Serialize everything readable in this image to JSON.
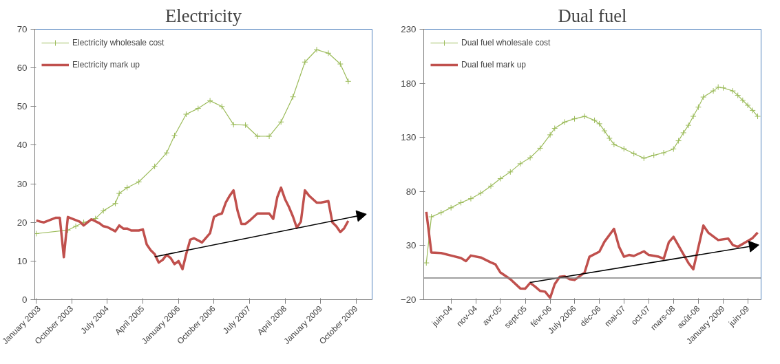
{
  "chart_data": [
    {
      "type": "line",
      "title": "Electricity",
      "xlim": [
        "2002-12-20",
        "2010-02-01"
      ],
      "ylim": [
        0,
        70
      ],
      "yticks": [
        0,
        10,
        20,
        30,
        40,
        50,
        60,
        70
      ],
      "xticks": [
        {
          "value": "2003-01",
          "label": "January 2003"
        },
        {
          "value": "2003-10",
          "label": "October 2003"
        },
        {
          "value": "2004-07",
          "label": "July 2004"
        },
        {
          "value": "2005-04",
          "label": "April 2005"
        },
        {
          "value": "2006-01",
          "label": "January 2006"
        },
        {
          "value": "2006-10",
          "label": "October 2006"
        },
        {
          "value": "2007-07",
          "label": "July 2007"
        },
        {
          "value": "2008-04",
          "label": "April 2008"
        },
        {
          "value": "2009-01",
          "label": "January 2009"
        },
        {
          "value": "2009-10",
          "label": "October 2009"
        }
      ],
      "legend": "top left",
      "grid": false,
      "series": [
        {
          "name": "Electricity wholesale cost",
          "color": "#9bbb59",
          "marker": "cross",
          "x": [
            "2003-01",
            "2003-09",
            "2003-11",
            "2004-01",
            "2004-04",
            "2004-06",
            "2004-09",
            "2004-10",
            "2004-12",
            "2005-03",
            "2005-07",
            "2005-10",
            "2005-12",
            "2006-03",
            "2006-06",
            "2006-09",
            "2006-12",
            "2007-03",
            "2007-06",
            "2007-09",
            "2007-12",
            "2008-03",
            "2008-06",
            "2008-09",
            "2008-12",
            "2009-03",
            "2009-06",
            "2009-08"
          ],
          "values": [
            17.1,
            18,
            19,
            20,
            21,
            23,
            24.9,
            27.5,
            29,
            30.5,
            34.5,
            38,
            42.5,
            48,
            49.5,
            51.5,
            50,
            45.3,
            45.2,
            42.3,
            42.3,
            46,
            52.5,
            61.5,
            64.7,
            63.8,
            61,
            56.5
          ]
        },
        {
          "name": "Electricity mark up",
          "color": "#c0504d",
          "x": [
            "2003-01",
            "2003-02",
            "2003-03",
            "2003-05",
            "2003-06",
            "2003-07",
            "2003-08",
            "2003-09",
            "2003-10",
            "2003-12",
            "2004-01",
            "2004-03",
            "2004-05",
            "2004-06",
            "2004-07",
            "2004-09",
            "2004-10",
            "2004-11",
            "2004-12",
            "2005-01",
            "2005-03",
            "2005-04",
            "2005-05",
            "2005-06",
            "2005-07",
            "2005-08",
            "2005-09",
            "2005-10",
            "2005-11",
            "2005-12",
            "2006-01",
            "2006-02",
            "2006-03",
            "2006-04",
            "2006-05",
            "2006-07",
            "2006-08",
            "2006-09",
            "2006-10",
            "2006-11",
            "2006-12",
            "2007-01",
            "2007-02",
            "2007-03",
            "2007-04",
            "2007-05",
            "2007-06",
            "2007-07",
            "2007-09",
            "2007-12",
            "2008-01",
            "2008-02",
            "2008-03",
            "2008-04",
            "2008-05",
            "2008-06",
            "2008-07",
            "2008-08",
            "2008-09",
            "2008-10",
            "2008-12",
            "2009-01",
            "2009-03",
            "2009-04",
            "2009-05",
            "2009-06",
            "2009-07",
            "2009-08"
          ],
          "values": [
            20.5,
            20.2,
            20.0,
            20.8,
            21.2,
            21.2,
            11,
            21.4,
            21,
            20.2,
            19.2,
            20.8,
            19.8,
            19.0,
            18.8,
            17.7,
            19.2,
            18.4,
            18.4,
            17.9,
            17.9,
            18.2,
            14.3,
            12.8,
            11.8,
            9.6,
            10.3,
            11.6,
            10.8,
            9.2,
            10,
            7.9,
            11.8,
            15.5,
            15.9,
            14.8,
            16,
            17.2,
            21.4,
            22,
            22.3,
            25.2,
            27,
            28.3,
            23,
            19.6,
            19.6,
            20.4,
            22.3,
            22.3,
            20.9,
            26.5,
            29,
            26,
            24,
            21.5,
            18.6,
            20.2,
            28.3,
            27,
            25.1,
            25.1,
            25.5,
            20,
            19,
            17.5,
            18.5,
            20.4
          ]
        },
        {
          "type": "line",
          "color": "#000000",
          "x": [
            "2005-07",
            "2009-11"
          ],
          "values": [
            11.1,
            21.8
          ]
        }
      ]
    },
    {
      "type": "line",
      "title": "Dual fuel",
      "xlim": [
        "2003-12-16",
        "2009-08-22"
      ],
      "ylim": [
        -20,
        230
      ],
      "yticks": [
        -20,
        30,
        80,
        130,
        180,
        230
      ],
      "xticks": [
        {
          "value": "2004-06",
          "label": "juin-04"
        },
        {
          "value": "2004-11",
          "label": "nov-04"
        },
        {
          "value": "2005-04",
          "label": "avr-05"
        },
        {
          "value": "2005-09",
          "label": "sept-05"
        },
        {
          "value": "2006-02",
          "label": "févr-06"
        },
        {
          "value": "2006-07",
          "label": "July 2006"
        },
        {
          "value": "2006-12",
          "label": "déc-06"
        },
        {
          "value": "2007-05",
          "label": "mai-07"
        },
        {
          "value": "2007-10",
          "label": "oct-07"
        },
        {
          "value": "2008-03",
          "label": "mars-08"
        },
        {
          "value": "2008-08",
          "label": "août-08"
        },
        {
          "value": "2009-01",
          "label": "January 2009"
        },
        {
          "value": "2009-06",
          "label": "juin-09"
        }
      ],
      "legend": "top left",
      "grid": false,
      "ref_lines": [
        {
          "axis": "y",
          "value": 0,
          "color": "#808080"
        }
      ],
      "series": [
        {
          "name": "Dual fuel wholesale cost",
          "color": "#9bbb59",
          "marker": "cross",
          "x": [
            "2004-01",
            "2004-02",
            "2004-04",
            "2004-06",
            "2004-08",
            "2004-10",
            "2004-12",
            "2005-02",
            "2005-04",
            "2005-06",
            "2005-08",
            "2005-10",
            "2005-12",
            "2006-02",
            "2006-03",
            "2006-05",
            "2006-07",
            "2006-09",
            "2006-11",
            "2006-12",
            "2007-01",
            "2007-02",
            "2007-03",
            "2007-05",
            "2007-07",
            "2007-09",
            "2007-11",
            "2008-01",
            "2008-03",
            "2008-04",
            "2008-05",
            "2008-06",
            "2008-07",
            "2008-08",
            "2008-09",
            "2008-11",
            "2008-12",
            "2009-01",
            "2009-03",
            "2009-04",
            "2009-05",
            "2009-06",
            "2009-07",
            "2009-08"
          ],
          "values": [
            14,
            56.6,
            60.5,
            65,
            69.7,
            73.4,
            78.5,
            85,
            91.9,
            98.1,
            105.7,
            111.2,
            120,
            132.4,
            138.4,
            144.2,
            147.2,
            149.5,
            145.8,
            142.6,
            136.1,
            129.2,
            123.5,
            119.5,
            115,
            110.8,
            113.5,
            115.8,
            119.3,
            126.9,
            134.3,
            141.2,
            149.5,
            158,
            167.3,
            173,
            176.5,
            175.8,
            173,
            168.9,
            164.3,
            159.7,
            155,
            149.5
          ]
        },
        {
          "name": "Dual fuel mark up",
          "color": "#c0504d",
          "x": [
            "2004-01",
            "2004-02",
            "2004-04",
            "2004-06",
            "2004-08",
            "2004-09",
            "2004-10",
            "2004-12",
            "2005-02",
            "2005-03",
            "2005-04",
            "2005-06",
            "2005-08",
            "2005-09",
            "2005-10",
            "2005-11",
            "2005-12",
            "2006-01",
            "2006-02",
            "2006-03",
            "2006-04",
            "2006-05",
            "2006-06",
            "2006-07",
            "2006-09",
            "2006-10",
            "2006-12",
            "2007-01",
            "2007-03",
            "2007-04",
            "2007-05",
            "2007-06",
            "2007-07",
            "2007-09",
            "2007-10",
            "2007-12",
            "2008-01",
            "2008-02",
            "2008-03",
            "2008-05",
            "2008-06",
            "2008-07",
            "2008-09",
            "2008-10",
            "2008-12",
            "2009-02",
            "2009-03",
            "2009-04",
            "2009-06",
            "2009-07",
            "2009-08"
          ],
          "values": [
            61.2,
            23.6,
            23.1,
            20.8,
            18.5,
            15.7,
            20.8,
            19,
            14.4,
            12.7,
            5.1,
            -1.1,
            -9.6,
            -9.8,
            -4.5,
            -8,
            -11.9,
            -12.6,
            -18.4,
            -5.7,
            1.2,
            1.7,
            -1.1,
            -1.8,
            5.1,
            19.7,
            24.4,
            33.5,
            45.5,
            28.9,
            19.7,
            21.3,
            20.4,
            24.7,
            21.3,
            19.7,
            17.8,
            33,
            38.1,
            22,
            13.9,
            8.1,
            48.5,
            42,
            35.1,
            36.5,
            30.5,
            28.9,
            34.2,
            37,
            42
          ]
        },
        {
          "type": "line",
          "color": "#000000",
          "x": [
            "2005-10",
            "2009-07"
          ],
          "values": [
            -4.1,
            29.6
          ]
        }
      ]
    }
  ]
}
